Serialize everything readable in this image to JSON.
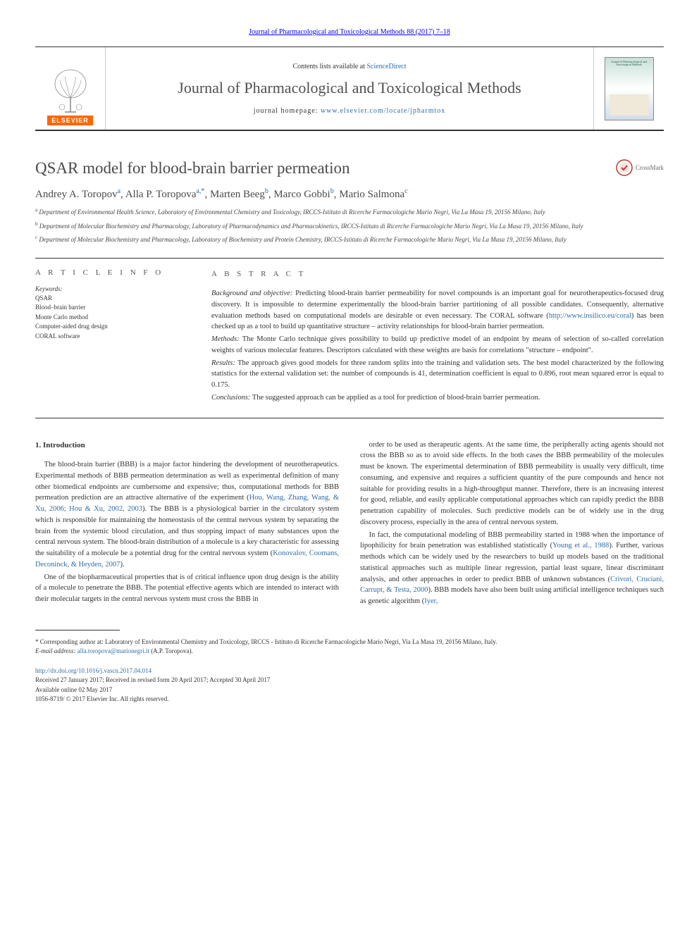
{
  "header": {
    "citation_link_text": "Journal of Pharmacological and Toxicological Methods 88 (2017) 7–18",
    "contents_prefix": "Contents lists available at ",
    "contents_link": "ScienceDirect",
    "journal_name": "Journal of Pharmacological and Toxicological Methods",
    "homepage_prefix": "journal homepage: ",
    "homepage_link": "www.elsevier.com/locate/jpharmtox",
    "elsevier_label": "ELSEVIER",
    "cover_title": "Journal of Pharmacological and Toxicological Methods",
    "colors": {
      "link_color": "#2e6da4",
      "elsevier_orange": "#ff6600",
      "border_dark": "#333333",
      "text_gray": "#505050"
    }
  },
  "article": {
    "title": "QSAR model for blood-brain barrier permeation",
    "crossmark_label": "CrossMark",
    "authors_html": "Andrey A. Toropov<sup>a</sup>, Alla P. Toropova<sup>a,*</sup>, Marten Beeg<sup>b</sup>, Marco Gobbi<sup>b</sup>, Mario Salmona<sup>c</sup>",
    "affiliations": [
      {
        "sup": "a",
        "text": "Department of Environmental Health Science, Laboratory of Environmental Chemistry and Toxicology, IRCCS-Istituto di Ricerche Farmacologiche Mario Negri, Via La Masa 19, 20156 Milano, Italy"
      },
      {
        "sup": "b",
        "text": "Department of Molecular Biochemistry and Pharmacology, Laboratory of Pharmacodynamics and Pharmacokinetics, IRCCS-Istituto di Ricerche Farmacologiche Mario Negri, Via La Masa 19, 20156 Milano, Italy"
      },
      {
        "sup": "c",
        "text": "Department of Molecular Biochemistry and Pharmacology, Laboratory of Biochemistry and Protein Chemistry, IRCCS-Istituto di Ricerche Farmacologiche Mario Negri, Via La Masa 19, 20156 Milano, Italy"
      }
    ]
  },
  "article_info": {
    "heading": "A R T I C L E  I N F O",
    "keywords_label": "Keywords:",
    "keywords": [
      "QSAR",
      "Blood–brain barrier",
      "Monte Carlo method",
      "Computer-aided drug design",
      "CORAL software"
    ]
  },
  "abstract": {
    "heading": "A B S T R A C T",
    "paragraphs": [
      {
        "label": "Background and objective:",
        "text": " Predicting blood-brain barrier permeability for novel compounds is an important goal for neurotherapeutics-focused drug discovery. It is impossible to determine experimentally the blood-brain barrier partitioning of all possible candidates. Consequently, alternative evaluation methods based on computational models are desirable or even necessary. The CORAL software (",
        "link": "http://www.insilico.eu/coral",
        "tail": ") has been checked up as a tool to build up quantitative structure – activity relationships for blood-brain barrier permeation."
      },
      {
        "label": "Methods:",
        "text": " The Monte Carlo technique gives possibility to build up predictive model of an endpoint by means of selection of so-called correlation weights of various molecular features. Descriptors calculated with these weights are basis for correlations \"structure – endpoint\".",
        "link": "",
        "tail": ""
      },
      {
        "label": "Results:",
        "text": " The approach gives good models for three random splits into the training and validation sets. The best model characterized by the following statistics for the external validation set: the number of compounds is 41, determination coefficient is equal to 0.896, root mean squared error is equal to 0.175.",
        "link": "",
        "tail": ""
      },
      {
        "label": "Conclusions:",
        "text": " The suggested approach can be applied as a tool for prediction of blood-brain barrier permeation.",
        "link": "",
        "tail": ""
      }
    ]
  },
  "body": {
    "section_heading": "1. Introduction",
    "left_paragraphs": [
      "The blood-brain barrier (BBB) is a major factor hindering the development of neurotherapeutics. Experimental methods of BBB permeation determination as well as experimental definition of many other biomedical endpoints are cumbersome and expensive; thus, computational methods for BBB permeation prediction are an attractive alternative of the experiment (<a href='#'>Hou, Wang, Zhang, Wang, & Xu, 2006; Hou & Xu, 2002, 2003</a>). The BBB is a physiological barrier in the circulatory system which is responsible for maintaining the homeostasis of the central nervous system by separating the brain from the systemic blood circulation, and thus stopping impact of many substances upon the central nervous system. The blood-brain distribution of a molecule is a key characteristic for assessing the suitability of a molecule be a potential drug for the central nervous system (<a href='#'>Konovalov, Coomans, Deconinck, & Heyden, 2007</a>).",
      "One of the biopharmaceutical properties that is of critical influence upon drug design is the ability of a molecule to penetrate the BBB. The potential effective agents which are intended to interact with their molecular targets in the central nervous system must cross the BBB in"
    ],
    "right_paragraphs": [
      "order to be used as therapeutic agents. At the same time, the peripherally acting agents should not cross the BBB so as to avoid side effects. In the both cases the BBB permeability of the molecules must be known. The experimental determination of BBB permeability is usually very difficult, time consuming, and expensive and requires a sufficient quantity of the pure compounds and hence not suitable for providing results in a high-throughput manner. Therefore, there is an increasing interest for good, reliable, and easily applicable computational approaches which can rapidly predict the BBB penetration capability of molecules. Such predictive models can be of widely use in the drug discovery process, especially in the area of central nervous system.",
      "In fact, the computational modeling of BBB permeability started in 1988 when the importance of lipophilicity for brain penetration was established statistically (<a href='#'>Young et al., 1988</a>). Further, various methods which can be widely used by the researchers to build up models based on the traditional statistical approaches such as multiple linear regression, partial least square, linear discriminant analysis, and other approaches in order to predict BBB of unknown substances (<a href='#'>Crivori, Cruciani, Carrupt, & Testa, 2000</a>). BBB models have also been built using artificial intelligence techniques such as genetic algorithm (<a href='#'>Iyer,</a>"
    ]
  },
  "footer": {
    "corresponding_label": "* Corresponding author at: Laboratory of Environmental Chemistry and Toxicology, IRCCS - Istituto di Ricerche Farmacologiche Mario Negri, Via La Masa 19, 20156 Milano, Italy.",
    "email_label": "E-mail address: ",
    "email": "alla.toropova@marionegri.it",
    "email_suffix": " (A.P. Toropova).",
    "doi_link": "http://dx.doi.org/10.1016/j.vascn.2017.04.014",
    "received": "Received 27 January 2017; Received in revised form 20 April 2017; Accepted 30 April 2017",
    "available": "Available online 02 May 2017",
    "copyright": "1056-8719/ © 2017 Elsevier Inc. All rights reserved."
  }
}
